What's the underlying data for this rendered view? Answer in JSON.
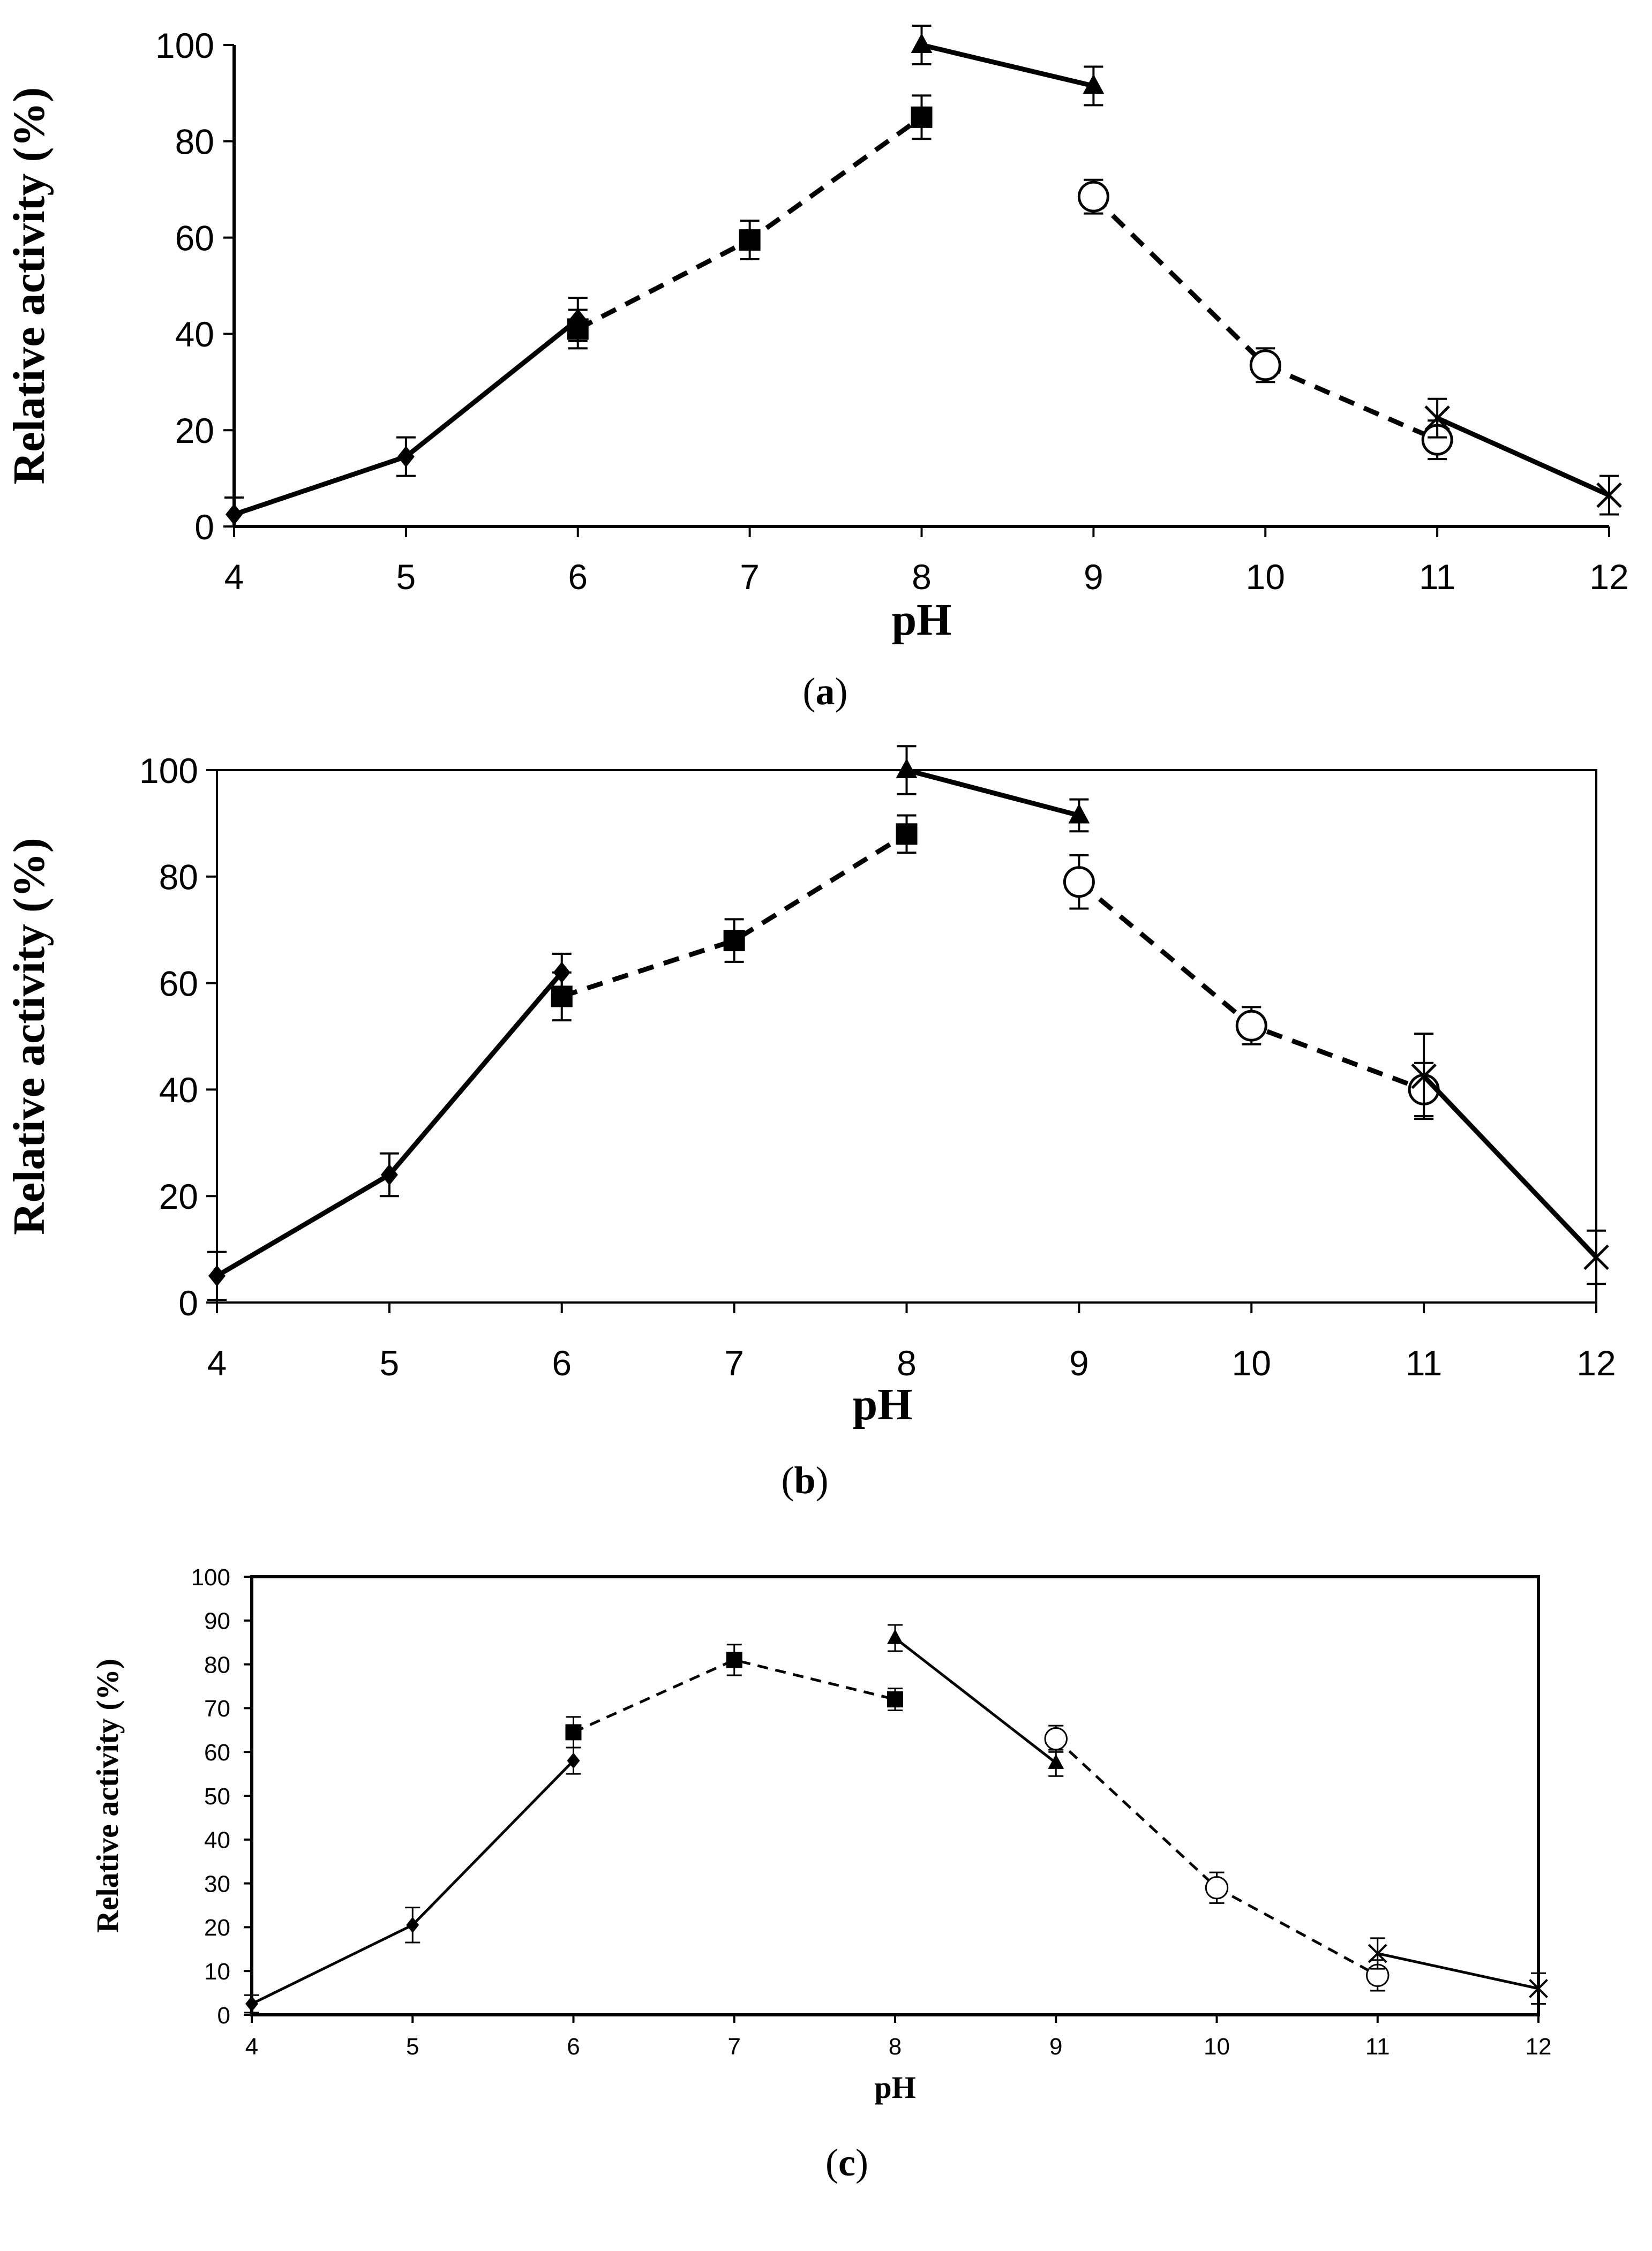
{
  "chart_data": [
    {
      "type": "line",
      "panel": "a",
      "caption": "(a)",
      "caption_letter": "a",
      "xlabel": "pH",
      "ylabel": "Relative activity (%)",
      "xlim": [
        4,
        12
      ],
      "ylim": [
        0,
        100
      ],
      "xticks": [
        4,
        5,
        6,
        7,
        8,
        9,
        10,
        11,
        12
      ],
      "yticks": [
        0,
        20,
        40,
        60,
        80,
        100
      ],
      "frame": false,
      "series": [
        {
          "name": "diamond",
          "marker": "diamond",
          "dash": false,
          "x": [
            4,
            5,
            6
          ],
          "y": [
            2.5,
            14.5,
            43
          ],
          "err": [
            3.5,
            4,
            4.5
          ]
        },
        {
          "name": "square",
          "marker": "square",
          "dash": true,
          "x": [
            6,
            7,
            8
          ],
          "y": [
            41,
            59.5,
            85
          ],
          "err": [
            4,
            4,
            4.5
          ]
        },
        {
          "name": "triangle",
          "marker": "triangle",
          "dash": false,
          "x": [
            8,
            9
          ],
          "y": [
            100,
            91.5
          ],
          "err": [
            4,
            4
          ]
        },
        {
          "name": "circle",
          "marker": "circle",
          "dash": true,
          "x": [
            9,
            10,
            11
          ],
          "y": [
            68.5,
            33.5,
            18
          ],
          "err": [
            3.5,
            3.5,
            4
          ]
        },
        {
          "name": "cross",
          "marker": "cross",
          "dash": false,
          "x": [
            11,
            12
          ],
          "y": [
            22.5,
            6.5
          ],
          "err": [
            4,
            4
          ]
        }
      ]
    },
    {
      "type": "line",
      "panel": "b",
      "caption": "(b)",
      "caption_letter": "b",
      "xlabel": "pH",
      "ylabel": "Relative activity (%)",
      "xlim": [
        4,
        12
      ],
      "ylim": [
        0,
        100
      ],
      "xticks": [
        4,
        5,
        6,
        7,
        8,
        9,
        10,
        11,
        12
      ],
      "yticks": [
        0,
        20,
        40,
        60,
        80,
        100
      ],
      "frame": true,
      "series": [
        {
          "name": "diamond",
          "marker": "diamond",
          "dash": false,
          "x": [
            4,
            5,
            6
          ],
          "y": [
            5,
            24,
            62
          ],
          "err": [
            4.5,
            4,
            3.5
          ]
        },
        {
          "name": "square",
          "marker": "square",
          "dash": true,
          "x": [
            6,
            7,
            8
          ],
          "y": [
            57.5,
            68,
            88
          ],
          "err": [
            4.5,
            4,
            3.5
          ]
        },
        {
          "name": "triangle",
          "marker": "triangle",
          "dash": false,
          "x": [
            8,
            9
          ],
          "y": [
            100,
            91.5
          ],
          "err": [
            4.5,
            3
          ]
        },
        {
          "name": "circle",
          "marker": "circle",
          "dash": true,
          "x": [
            9,
            10,
            11
          ],
          "y": [
            79,
            52,
            40
          ],
          "err": [
            5,
            3.5,
            5
          ]
        },
        {
          "name": "cross",
          "marker": "cross",
          "dash": false,
          "x": [
            11,
            12
          ],
          "y": [
            42.5,
            8.5
          ],
          "err": [
            8,
            5
          ]
        }
      ]
    },
    {
      "type": "line",
      "panel": "c",
      "caption": "(c)",
      "caption_letter": "c",
      "xlabel": "pH",
      "ylabel": "Relative activity (%)",
      "xlim": [
        4,
        12
      ],
      "ylim": [
        0,
        100
      ],
      "xticks": [
        4,
        5,
        6,
        7,
        8,
        9,
        10,
        11,
        12
      ],
      "yticks": [
        0,
        10,
        20,
        30,
        40,
        50,
        60,
        70,
        80,
        90,
        100
      ],
      "frame": true,
      "series": [
        {
          "name": "diamond",
          "marker": "diamond",
          "dash": false,
          "x": [
            4,
            5,
            6
          ],
          "y": [
            2.5,
            20.5,
            58
          ],
          "err": [
            2,
            4,
            3
          ]
        },
        {
          "name": "square",
          "marker": "square",
          "dash": true,
          "x": [
            6,
            7,
            8
          ],
          "y": [
            64.5,
            81,
            72
          ],
          "err": [
            3.5,
            3.5,
            2.5
          ]
        },
        {
          "name": "triangle",
          "marker": "triangle",
          "dash": false,
          "x": [
            8,
            9
          ],
          "y": [
            86,
            57.5
          ],
          "err": [
            3,
            3
          ]
        },
        {
          "name": "circle",
          "marker": "circle",
          "dash": true,
          "x": [
            9,
            10,
            11
          ],
          "y": [
            63,
            29,
            9
          ],
          "err": [
            3,
            3.5,
            3.5
          ]
        },
        {
          "name": "cross",
          "marker": "cross",
          "dash": false,
          "x": [
            11,
            12
          ],
          "y": [
            14,
            6
          ],
          "err": [
            3.5,
            3.5
          ]
        }
      ]
    }
  ]
}
